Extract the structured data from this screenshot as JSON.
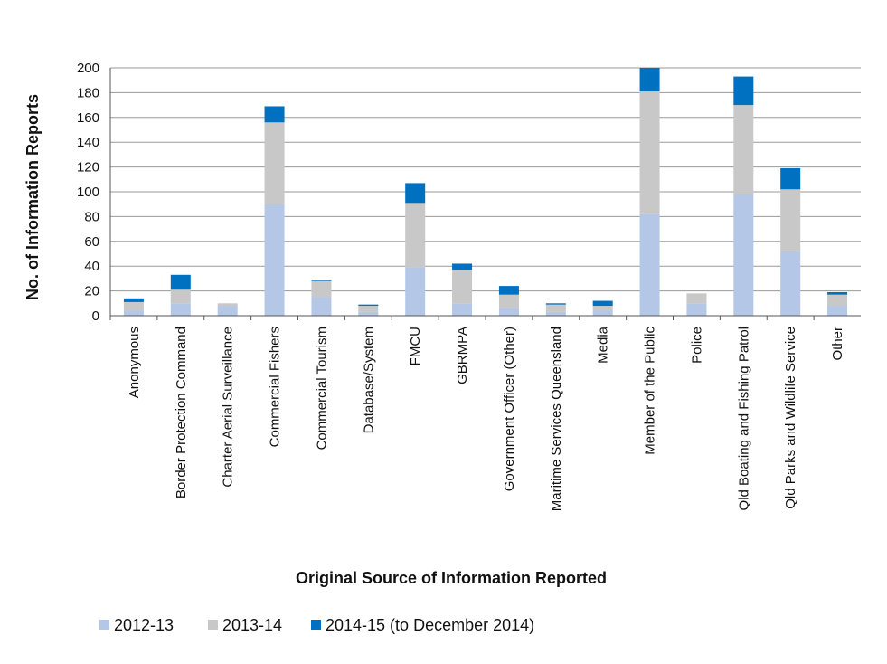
{
  "chart_data": {
    "type": "bar",
    "stacked": true,
    "title": "",
    "xlabel": "Original Source of Information Reported",
    "ylabel": "No. of Information Reports",
    "ylim": [
      0,
      200
    ],
    "yticks": [
      0,
      20,
      40,
      60,
      80,
      100,
      120,
      140,
      160,
      180,
      200
    ],
    "grid": true,
    "legend_position": "bottom",
    "categories": [
      "Anonymous",
      "Border Protection Command",
      "Charter Aerial Surveillance",
      "Commercial Fishers",
      "Commercial Tourism",
      "Database/System",
      "FMCU",
      "GBRMPA",
      "Government Officer (Other)",
      "Maritime Services Queensland",
      "Media",
      "Member of the Public",
      "Police",
      "Qld Boating and Fishing Patrol",
      "Qld Parks and Wildlife Service",
      "Other"
    ],
    "series": [
      {
        "name": "2012-13",
        "color": "#b4c7e7",
        "values": [
          4,
          10,
          8,
          90,
          15,
          3,
          39,
          10,
          6,
          3,
          4,
          82,
          10,
          98,
          52,
          8
        ]
      },
      {
        "name": "2013-14",
        "color": "#c8c8c8",
        "values": [
          7,
          11,
          2,
          66,
          13,
          5,
          52,
          27,
          11,
          6,
          4,
          99,
          8,
          72,
          50,
          9
        ]
      },
      {
        "name": "2014-15 (to December 2014)",
        "color": "#0070c0",
        "values": [
          3,
          12,
          0,
          13,
          1,
          1,
          16,
          5,
          7,
          1,
          4,
          19,
          0,
          23,
          17,
          2
        ]
      }
    ]
  }
}
